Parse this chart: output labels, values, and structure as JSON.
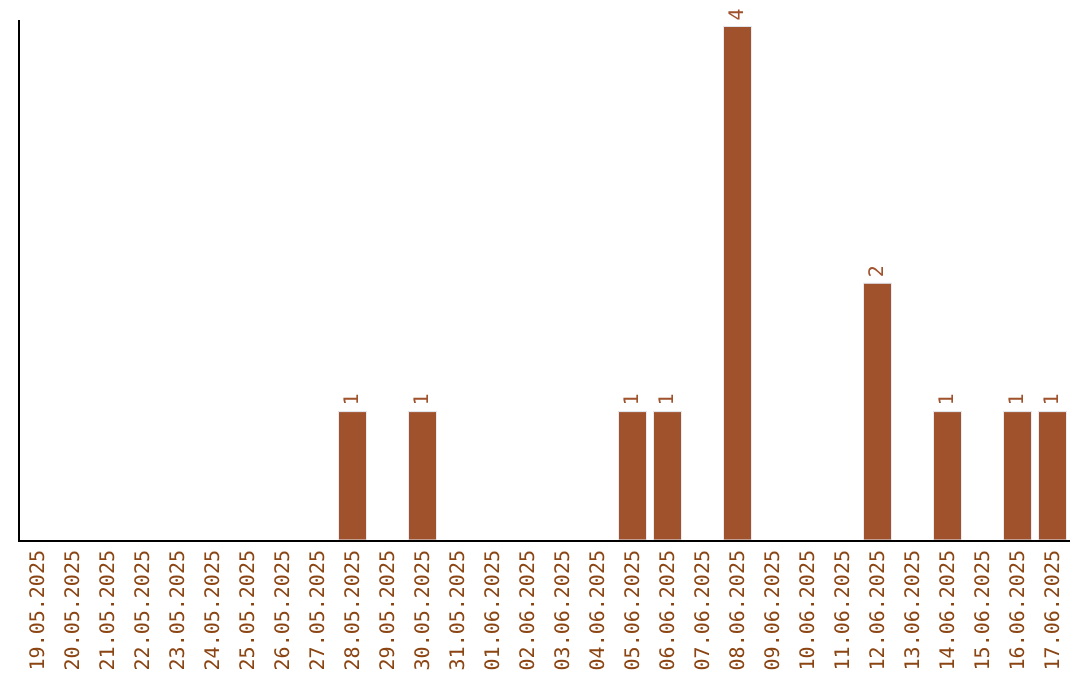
{
  "chart_data": {
    "type": "bar",
    "categories": [
      "19.05.2025",
      "20.05.2025",
      "21.05.2025",
      "22.05.2025",
      "23.05.2025",
      "24.05.2025",
      "25.05.2025",
      "26.05.2025",
      "27.05.2025",
      "28.05.2025",
      "29.05.2025",
      "30.05.2025",
      "31.05.2025",
      "01.06.2025",
      "02.06.2025",
      "03.06.2025",
      "04.06.2025",
      "05.06.2025",
      "06.06.2025",
      "07.06.2025",
      "08.06.2025",
      "09.06.2025",
      "10.06.2025",
      "11.06.2025",
      "12.06.2025",
      "13.06.2025",
      "14.06.2025",
      "15.06.2025",
      "16.06.2025",
      "17.06.2025"
    ],
    "values": [
      null,
      null,
      null,
      null,
      null,
      null,
      null,
      null,
      null,
      1,
      null,
      1,
      null,
      null,
      null,
      null,
      null,
      1,
      1,
      null,
      4,
      null,
      null,
      null,
      2,
      null,
      1,
      null,
      1,
      1
    ],
    "value_labels": [
      null,
      null,
      null,
      null,
      null,
      null,
      null,
      null,
      null,
      "1",
      null,
      "1",
      null,
      null,
      null,
      null,
      null,
      "1",
      "1",
      null,
      "4",
      null,
      null,
      null,
      "2",
      null,
      "1",
      null,
      "1",
      "1"
    ],
    "color": "#a0522d",
    "ylim": [
      0,
      4.05
    ],
    "tick_labels": "x"
  }
}
